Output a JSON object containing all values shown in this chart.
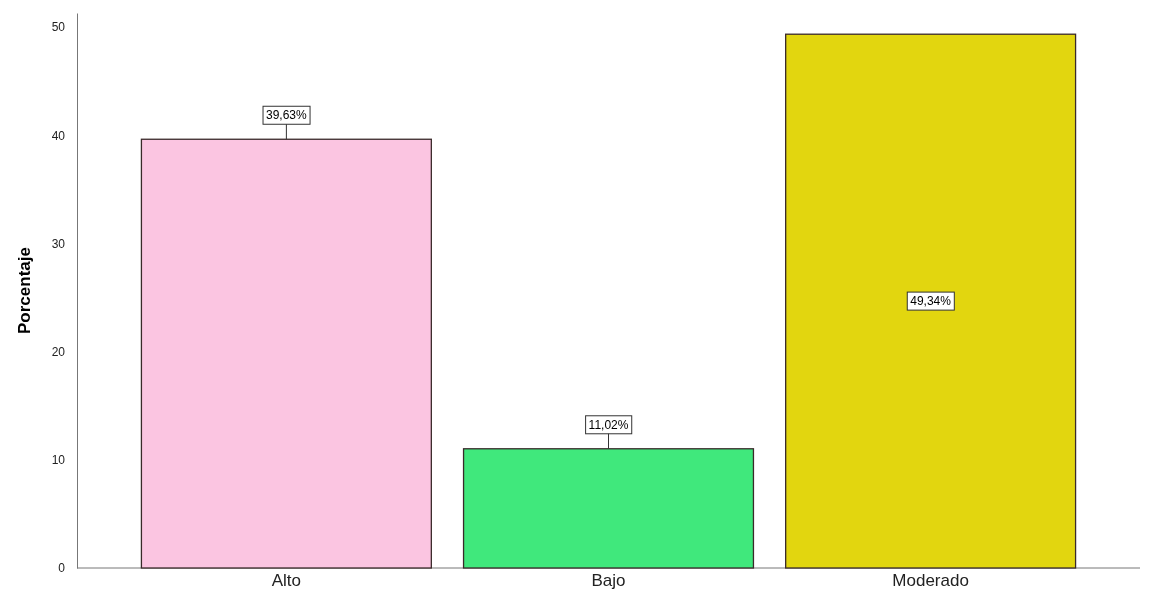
{
  "chart_data": {
    "type": "bar",
    "ylabel": "Porcentaje",
    "categories": [
      "Alto",
      "Bajo",
      "Moderado"
    ],
    "values": [
      39.63,
      11.02,
      49.34
    ],
    "colors": [
      "#fbc5e1",
      "#40e87c",
      "#e2d60f"
    ],
    "value_labels": [
      "39,63%",
      "11,02%",
      "49,34%"
    ],
    "ylim": [
      0,
      51.3
    ],
    "yticks": [
      0,
      10,
      20,
      30,
      40,
      50
    ]
  }
}
